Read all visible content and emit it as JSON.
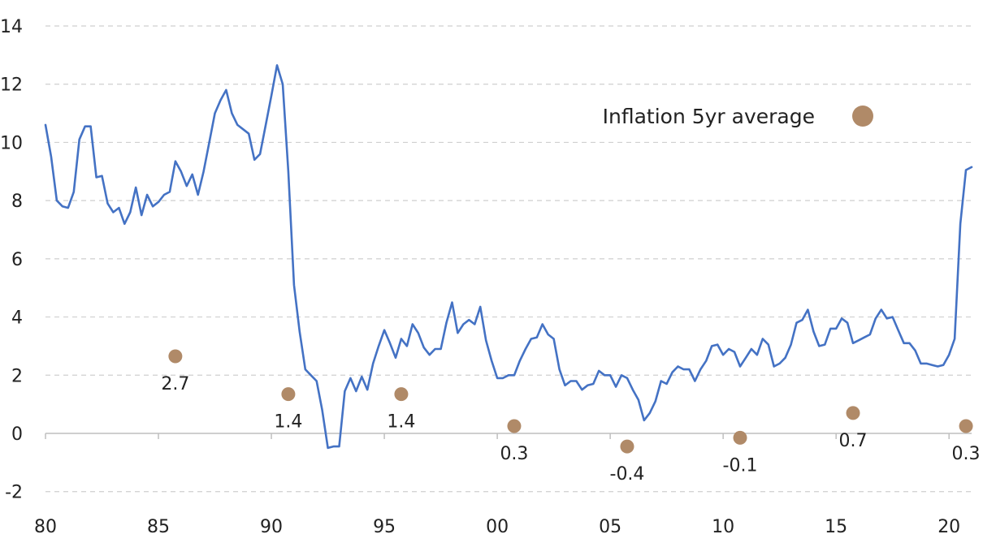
{
  "chart_data": {
    "type": "line",
    "title": "",
    "xlabel": "",
    "ylabel": "",
    "ylim": [
      -2,
      14
    ],
    "yticks": [
      -2,
      0,
      2,
      4,
      6,
      8,
      10,
      12,
      14
    ],
    "xlim": [
      1980,
      2021
    ],
    "xticks": [
      {
        "label": "80",
        "x": 1980
      },
      {
        "label": "85",
        "x": 1985
      },
      {
        "label": "90",
        "x": 1990
      },
      {
        "label": "95",
        "x": 1995
      },
      {
        "label": "00",
        "x": 2000
      },
      {
        "label": "05",
        "x": 2005
      },
      {
        "label": "10",
        "x": 2010
      },
      {
        "label": "15",
        "x": 2015
      },
      {
        "label": "20",
        "x": 2020
      }
    ],
    "grid": "horizontal dashed",
    "line_color": "#4472c4",
    "marker_color": "#b08a68",
    "legend": {
      "label": "Inflation 5yr average",
      "position": "top-right"
    },
    "series": [
      {
        "values": [
          [
            1980.0,
            10.6
          ],
          [
            1980.25,
            9.5
          ],
          [
            1980.5,
            8.0
          ],
          [
            1980.75,
            7.8
          ],
          [
            1981.0,
            7.75
          ],
          [
            1981.25,
            8.3
          ],
          [
            1981.5,
            10.1
          ],
          [
            1981.75,
            10.55
          ],
          [
            1982.0,
            10.55
          ],
          [
            1982.25,
            8.8
          ],
          [
            1982.5,
            8.85
          ],
          [
            1982.75,
            7.9
          ],
          [
            1983.0,
            7.6
          ],
          [
            1983.25,
            7.75
          ],
          [
            1983.5,
            7.2
          ],
          [
            1983.75,
            7.6
          ],
          [
            1984.0,
            8.45
          ],
          [
            1984.25,
            7.5
          ],
          [
            1984.5,
            8.2
          ],
          [
            1984.75,
            7.8
          ],
          [
            1985.0,
            7.95
          ],
          [
            1985.25,
            8.2
          ],
          [
            1985.5,
            8.3
          ],
          [
            1985.75,
            9.35
          ],
          [
            1986.0,
            9.0
          ],
          [
            1986.25,
            8.5
          ],
          [
            1986.5,
            8.9
          ],
          [
            1986.75,
            8.2
          ],
          [
            1987.0,
            9.0
          ],
          [
            1987.25,
            10.0
          ],
          [
            1987.5,
            11.0
          ],
          [
            1987.75,
            11.45
          ],
          [
            1988.0,
            11.8
          ],
          [
            1988.25,
            11.0
          ],
          [
            1988.5,
            10.6
          ],
          [
            1988.75,
            10.45
          ],
          [
            1989.0,
            10.3
          ],
          [
            1989.25,
            9.4
          ],
          [
            1989.5,
            9.6
          ],
          [
            1989.75,
            10.6
          ],
          [
            1990.0,
            11.6
          ],
          [
            1990.25,
            12.65
          ],
          [
            1990.5,
            12.0
          ],
          [
            1990.75,
            9.0
          ],
          [
            1991.0,
            5.1
          ],
          [
            1991.25,
            3.5
          ],
          [
            1991.5,
            2.2
          ],
          [
            1991.75,
            2.0
          ],
          [
            1992.0,
            1.8
          ],
          [
            1992.25,
            0.8
          ],
          [
            1992.5,
            -0.5
          ],
          [
            1992.75,
            -0.45
          ],
          [
            1993.0,
            -0.45
          ],
          [
            1993.25,
            1.45
          ],
          [
            1993.5,
            1.9
          ],
          [
            1993.75,
            1.45
          ],
          [
            1994.0,
            1.95
          ],
          [
            1994.25,
            1.5
          ],
          [
            1994.5,
            2.4
          ],
          [
            1994.75,
            3.0
          ],
          [
            1995.0,
            3.55
          ],
          [
            1995.25,
            3.1
          ],
          [
            1995.5,
            2.6
          ],
          [
            1995.75,
            3.25
          ],
          [
            1996.0,
            3.0
          ],
          [
            1996.25,
            3.75
          ],
          [
            1996.5,
            3.45
          ],
          [
            1996.75,
            2.95
          ],
          [
            1997.0,
            2.7
          ],
          [
            1997.25,
            2.9
          ],
          [
            1997.5,
            2.9
          ],
          [
            1997.75,
            3.8
          ],
          [
            1998.0,
            4.5
          ],
          [
            1998.25,
            3.45
          ],
          [
            1998.5,
            3.75
          ],
          [
            1998.75,
            3.9
          ],
          [
            1999.0,
            3.75
          ],
          [
            1999.25,
            4.35
          ],
          [
            1999.5,
            3.2
          ],
          [
            1999.75,
            2.5
          ],
          [
            2000.0,
            1.9
          ],
          [
            2000.25,
            1.9
          ],
          [
            2000.5,
            2.0
          ],
          [
            2000.75,
            2.0
          ],
          [
            2001.0,
            2.5
          ],
          [
            2001.25,
            2.9
          ],
          [
            2001.5,
            3.25
          ],
          [
            2001.75,
            3.3
          ],
          [
            2002.0,
            3.75
          ],
          [
            2002.25,
            3.4
          ],
          [
            2002.5,
            3.25
          ],
          [
            2002.75,
            2.2
          ],
          [
            2003.0,
            1.65
          ],
          [
            2003.25,
            1.8
          ],
          [
            2003.5,
            1.8
          ],
          [
            2003.75,
            1.5
          ],
          [
            2004.0,
            1.65
          ],
          [
            2004.25,
            1.7
          ],
          [
            2004.5,
            2.15
          ],
          [
            2004.75,
            2.0
          ],
          [
            2005.0,
            2.0
          ],
          [
            2005.25,
            1.6
          ],
          [
            2005.5,
            2.0
          ],
          [
            2005.75,
            1.9
          ],
          [
            2006.0,
            1.5
          ],
          [
            2006.25,
            1.15
          ],
          [
            2006.5,
            0.45
          ],
          [
            2006.75,
            0.7
          ],
          [
            2007.0,
            1.1
          ],
          [
            2007.25,
            1.8
          ],
          [
            2007.5,
            1.7
          ],
          [
            2007.75,
            2.1
          ],
          [
            2008.0,
            2.3
          ],
          [
            2008.25,
            2.2
          ],
          [
            2008.5,
            2.2
          ],
          [
            2008.75,
            1.8
          ],
          [
            2009.0,
            2.2
          ],
          [
            2009.25,
            2.5
          ],
          [
            2009.5,
            3.0
          ],
          [
            2009.75,
            3.05
          ],
          [
            2010.0,
            2.7
          ],
          [
            2010.25,
            2.9
          ],
          [
            2010.5,
            2.8
          ],
          [
            2010.75,
            2.3
          ],
          [
            2011.0,
            2.6
          ],
          [
            2011.25,
            2.9
          ],
          [
            2011.5,
            2.7
          ],
          [
            2011.75,
            3.25
          ],
          [
            2012.0,
            3.05
          ],
          [
            2012.25,
            2.3
          ],
          [
            2012.5,
            2.4
          ],
          [
            2012.75,
            2.6
          ],
          [
            2013.0,
            3.05
          ],
          [
            2013.25,
            3.8
          ],
          [
            2013.5,
            3.9
          ],
          [
            2013.75,
            4.25
          ],
          [
            2014.0,
            3.5
          ],
          [
            2014.25,
            3.0
          ],
          [
            2014.5,
            3.05
          ],
          [
            2014.75,
            3.6
          ],
          [
            2015.0,
            3.6
          ],
          [
            2015.25,
            3.95
          ],
          [
            2015.5,
            3.8
          ],
          [
            2015.75,
            3.1
          ],
          [
            2016.0,
            3.2
          ],
          [
            2016.25,
            3.3
          ],
          [
            2016.5,
            3.4
          ],
          [
            2016.75,
            3.95
          ],
          [
            2017.0,
            4.25
          ],
          [
            2017.25,
            3.95
          ],
          [
            2017.5,
            4.0
          ],
          [
            2017.75,
            3.55
          ],
          [
            2018.0,
            3.1
          ],
          [
            2018.25,
            3.1
          ],
          [
            2018.5,
            2.85
          ],
          [
            2018.75,
            2.4
          ],
          [
            2019.0,
            2.4
          ],
          [
            2019.25,
            2.35
          ],
          [
            2019.5,
            2.3
          ],
          [
            2019.75,
            2.35
          ],
          [
            2020.0,
            2.7
          ],
          [
            2020.25,
            3.25
          ],
          [
            2020.5,
            7.2
          ],
          [
            2020.75,
            9.05
          ],
          [
            2021.0,
            9.15
          ]
        ]
      },
      {
        "name": "Inflation 5yr average",
        "points": [
          {
            "x": 1985.75,
            "y": 2.65,
            "label": "2.7"
          },
          {
            "x": 1990.75,
            "y": 1.35,
            "label": "1.4"
          },
          {
            "x": 1995.75,
            "y": 1.35,
            "label": "1.4"
          },
          {
            "x": 2000.75,
            "y": 0.25,
            "label": "0.3"
          },
          {
            "x": 2005.75,
            "y": -0.45,
            "label": "-0.4"
          },
          {
            "x": 2010.75,
            "y": -0.15,
            "label": "-0.1"
          },
          {
            "x": 2015.75,
            "y": 0.7,
            "label": "0.7"
          },
          {
            "x": 2020.75,
            "y": 0.25,
            "label": "0.3"
          }
        ]
      }
    ]
  }
}
